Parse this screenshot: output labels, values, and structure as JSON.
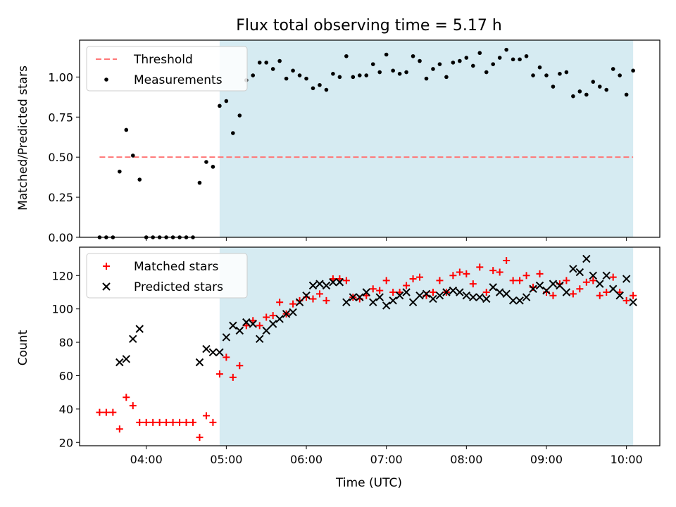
{
  "chart_data": [
    {
      "type": "scatter",
      "title": "Flux total observing time = 5.17 h",
      "xlabel": "",
      "ylabel": "Matched/Predicted stars",
      "xlim": [
        "03:10",
        "10:25"
      ],
      "ylim": [
        0,
        1.23
      ],
      "yticks": [
        0.0,
        0.25,
        0.5,
        0.75,
        1.0
      ],
      "ytick_labels": [
        "0.00",
        "0.25",
        "0.50",
        "0.75",
        "1.00"
      ],
      "grid": false,
      "legend_position": "top-left",
      "shaded_region": {
        "x": [
          "04:55",
          "10:05"
        ],
        "color": "#add8e6"
      },
      "threshold": {
        "name": "Threshold",
        "y": 0.5,
        "x": [
          "03:25",
          "10:05"
        ],
        "color": "#ff7777",
        "style": "dashed"
      },
      "series": [
        {
          "name": "Measurements",
          "marker": "dot",
          "color": "#000000",
          "points": [
            [
              "03:25",
              0.0
            ],
            [
              "03:30",
              0.0
            ],
            [
              "03:35",
              0.0
            ],
            [
              "03:40",
              0.41
            ],
            [
              "03:45",
              0.67
            ],
            [
              "03:50",
              0.51
            ],
            [
              "03:55",
              0.36
            ],
            [
              "04:00",
              0.0
            ],
            [
              "04:05",
              0.0
            ],
            [
              "04:10",
              0.0
            ],
            [
              "04:15",
              0.0
            ],
            [
              "04:20",
              0.0
            ],
            [
              "04:25",
              0.0
            ],
            [
              "04:30",
              0.0
            ],
            [
              "04:35",
              0.0
            ],
            [
              "04:40",
              0.34
            ],
            [
              "04:45",
              0.47
            ],
            [
              "04:50",
              0.44
            ],
            [
              "04:55",
              0.82
            ],
            [
              "05:00",
              0.85
            ],
            [
              "05:05",
              0.65
            ],
            [
              "05:10",
              0.76
            ],
            [
              "05:15",
              0.98
            ],
            [
              "05:20",
              1.01
            ],
            [
              "05:25",
              1.09
            ],
            [
              "05:30",
              1.09
            ],
            [
              "05:35",
              1.05
            ],
            [
              "05:40",
              1.1
            ],
            [
              "05:45",
              0.99
            ],
            [
              "05:50",
              1.04
            ],
            [
              "05:55",
              1.01
            ],
            [
              "06:00",
              0.99
            ],
            [
              "06:05",
              0.93
            ],
            [
              "06:10",
              0.95
            ],
            [
              "06:15",
              0.92
            ],
            [
              "06:20",
              1.02
            ],
            [
              "06:25",
              1.0
            ],
            [
              "06:30",
              1.13
            ],
            [
              "06:35",
              1.0
            ],
            [
              "06:40",
              1.01
            ],
            [
              "06:45",
              1.01
            ],
            [
              "06:50",
              1.08
            ],
            [
              "06:55",
              1.03
            ],
            [
              "07:00",
              1.14
            ],
            [
              "07:05",
              1.04
            ],
            [
              "07:10",
              1.02
            ],
            [
              "07:15",
              1.03
            ],
            [
              "07:20",
              1.13
            ],
            [
              "07:25",
              1.1
            ],
            [
              "07:30",
              0.99
            ],
            [
              "07:35",
              1.05
            ],
            [
              "07:40",
              1.08
            ],
            [
              "07:45",
              1.0
            ],
            [
              "07:50",
              1.09
            ],
            [
              "07:55",
              1.1
            ],
            [
              "08:00",
              1.12
            ],
            [
              "08:05",
              1.07
            ],
            [
              "08:10",
              1.15
            ],
            [
              "08:15",
              1.03
            ],
            [
              "08:20",
              1.08
            ],
            [
              "08:25",
              1.12
            ],
            [
              "08:30",
              1.17
            ],
            [
              "08:35",
              1.11
            ],
            [
              "08:40",
              1.11
            ],
            [
              "08:45",
              1.13
            ],
            [
              "08:50",
              1.01
            ],
            [
              "08:55",
              1.06
            ],
            [
              "09:00",
              1.01
            ],
            [
              "09:05",
              0.94
            ],
            [
              "09:10",
              1.02
            ],
            [
              "09:15",
              1.03
            ],
            [
              "09:20",
              0.88
            ],
            [
              "09:25",
              0.91
            ],
            [
              "09:30",
              0.89
            ],
            [
              "09:35",
              0.97
            ],
            [
              "09:40",
              0.94
            ],
            [
              "09:45",
              0.92
            ],
            [
              "09:50",
              1.05
            ],
            [
              "09:55",
              1.01
            ],
            [
              "10:00",
              0.89
            ],
            [
              "10:05",
              1.04
            ]
          ]
        }
      ],
      "legend": [
        "Threshold",
        "Measurements"
      ]
    },
    {
      "type": "scatter",
      "title": "",
      "xlabel": "Time (UTC)",
      "ylabel": "Count",
      "xlim": [
        "03:10",
        "10:25"
      ],
      "ylim": [
        18,
        137
      ],
      "yticks": [
        20,
        40,
        60,
        80,
        100,
        120
      ],
      "ytick_labels": [
        "20",
        "40",
        "60",
        "80",
        "100",
        "120"
      ],
      "xticks": [
        "04:00",
        "05:00",
        "06:00",
        "07:00",
        "08:00",
        "09:00",
        "10:00"
      ],
      "grid": false,
      "legend_position": "top-left",
      "shaded_region": {
        "x": [
          "04:55",
          "10:05"
        ],
        "color": "#add8e6"
      },
      "series": [
        {
          "name": "Matched stars",
          "marker": "plus",
          "color": "#ff0000",
          "points": [
            [
              "03:25",
              38
            ],
            [
              "03:30",
              38
            ],
            [
              "03:35",
              38
            ],
            [
              "03:40",
              28
            ],
            [
              "03:45",
              47
            ],
            [
              "03:50",
              42
            ],
            [
              "03:55",
              32
            ],
            [
              "04:00",
              32
            ],
            [
              "04:05",
              32
            ],
            [
              "04:10",
              32
            ],
            [
              "04:15",
              32
            ],
            [
              "04:20",
              32
            ],
            [
              "04:25",
              32
            ],
            [
              "04:30",
              32
            ],
            [
              "04:35",
              32
            ],
            [
              "04:40",
              23
            ],
            [
              "04:45",
              36
            ],
            [
              "04:50",
              32
            ],
            [
              "04:55",
              61
            ],
            [
              "05:00",
              71
            ],
            [
              "05:05",
              59
            ],
            [
              "05:10",
              66
            ],
            [
              "05:15",
              90
            ],
            [
              "05:20",
              93
            ],
            [
              "05:25",
              90
            ],
            [
              "05:30",
              95
            ],
            [
              "05:35",
              96
            ],
            [
              "05:40",
              104
            ],
            [
              "05:45",
              97
            ],
            [
              "05:50",
              103
            ],
            [
              "05:55",
              105
            ],
            [
              "06:00",
              107
            ],
            [
              "06:05",
              106
            ],
            [
              "06:10",
              109
            ],
            [
              "06:15",
              105
            ],
            [
              "06:20",
              118
            ],
            [
              "06:25",
              118
            ],
            [
              "06:30",
              117
            ],
            [
              "06:35",
              107
            ],
            [
              "06:40",
              106
            ],
            [
              "06:45",
              108
            ],
            [
              "06:50",
              112
            ],
            [
              "06:55",
              111
            ],
            [
              "07:00",
              117
            ],
            [
              "07:05",
              110
            ],
            [
              "07:10",
              110
            ],
            [
              "07:15",
              114
            ],
            [
              "07:20",
              118
            ],
            [
              "07:25",
              119
            ],
            [
              "07:30",
              108
            ],
            [
              "07:35",
              110
            ],
            [
              "07:40",
              117
            ],
            [
              "07:45",
              110
            ],
            [
              "07:50",
              120
            ],
            [
              "07:55",
              122
            ],
            [
              "08:00",
              121
            ],
            [
              "08:05",
              115
            ],
            [
              "08:10",
              125
            ],
            [
              "08:15",
              110
            ],
            [
              "08:20",
              123
            ],
            [
              "08:25",
              122
            ],
            [
              "08:30",
              129
            ],
            [
              "08:35",
              117
            ],
            [
              "08:40",
              117
            ],
            [
              "08:45",
              120
            ],
            [
              "08:50",
              113
            ],
            [
              "08:55",
              121
            ],
            [
              "09:00",
              110
            ],
            [
              "09:05",
              108
            ],
            [
              "09:10",
              115
            ],
            [
              "09:15",
              117
            ],
            [
              "09:20",
              109
            ],
            [
              "09:25",
              112
            ],
            [
              "09:30",
              116
            ],
            [
              "09:35",
              117
            ],
            [
              "09:40",
              108
            ],
            [
              "09:45",
              110
            ],
            [
              "09:50",
              119
            ],
            [
              "09:55",
              110
            ],
            [
              "10:00",
              105
            ],
            [
              "10:05",
              108
            ]
          ]
        },
        {
          "name": "Predicted stars",
          "marker": "x",
          "color": "#000000",
          "points": [
            [
              "03:40",
              68
            ],
            [
              "03:45",
              70
            ],
            [
              "03:50",
              82
            ],
            [
              "03:55",
              88
            ],
            [
              "04:40",
              68
            ],
            [
              "04:45",
              76
            ],
            [
              "04:50",
              74
            ],
            [
              "04:55",
              74
            ],
            [
              "05:00",
              83
            ],
            [
              "05:05",
              90
            ],
            [
              "05:10",
              87
            ],
            [
              "05:15",
              92
            ],
            [
              "05:20",
              91
            ],
            [
              "05:25",
              82
            ],
            [
              "05:30",
              87
            ],
            [
              "05:35",
              91
            ],
            [
              "05:40",
              94
            ],
            [
              "05:45",
              97
            ],
            [
              "05:50",
              98
            ],
            [
              "05:55",
              104
            ],
            [
              "06:00",
              108
            ],
            [
              "06:05",
              114
            ],
            [
              "06:10",
              115
            ],
            [
              "06:15",
              114
            ],
            [
              "06:20",
              116
            ],
            [
              "06:25",
              116
            ],
            [
              "06:30",
              104
            ],
            [
              "06:35",
              107
            ],
            [
              "06:40",
              107
            ],
            [
              "06:45",
              110
            ],
            [
              "06:50",
              104
            ],
            [
              "06:55",
              107
            ],
            [
              "07:00",
              102
            ],
            [
              "07:05",
              105
            ],
            [
              "07:10",
              108
            ],
            [
              "07:15",
              110
            ],
            [
              "07:20",
              104
            ],
            [
              "07:25",
              108
            ],
            [
              "07:30",
              109
            ],
            [
              "07:35",
              106
            ],
            [
              "07:40",
              108
            ],
            [
              "07:45",
              110
            ],
            [
              "07:50",
              111
            ],
            [
              "07:55",
              110
            ],
            [
              "08:00",
              108
            ],
            [
              "08:05",
              107
            ],
            [
              "08:10",
              107
            ],
            [
              "08:15",
              106
            ],
            [
              "08:20",
              113
            ],
            [
              "08:25",
              110
            ],
            [
              "08:30",
              109
            ],
            [
              "08:35",
              105
            ],
            [
              "08:40",
              105
            ],
            [
              "08:45",
              107
            ],
            [
              "08:50",
              112
            ],
            [
              "08:55",
              114
            ],
            [
              "09:00",
              111
            ],
            [
              "09:05",
              115
            ],
            [
              "09:10",
              114
            ],
            [
              "09:15",
              110
            ],
            [
              "09:20",
              124
            ],
            [
              "09:25",
              122
            ],
            [
              "09:30",
              130
            ],
            [
              "09:35",
              120
            ],
            [
              "09:40",
              115
            ],
            [
              "09:45",
              120
            ],
            [
              "09:50",
              112
            ],
            [
              "09:55",
              108
            ],
            [
              "10:00",
              118
            ],
            [
              "10:05",
              104
            ]
          ]
        }
      ],
      "legend": [
        "Matched stars",
        "Predicted stars"
      ]
    }
  ]
}
